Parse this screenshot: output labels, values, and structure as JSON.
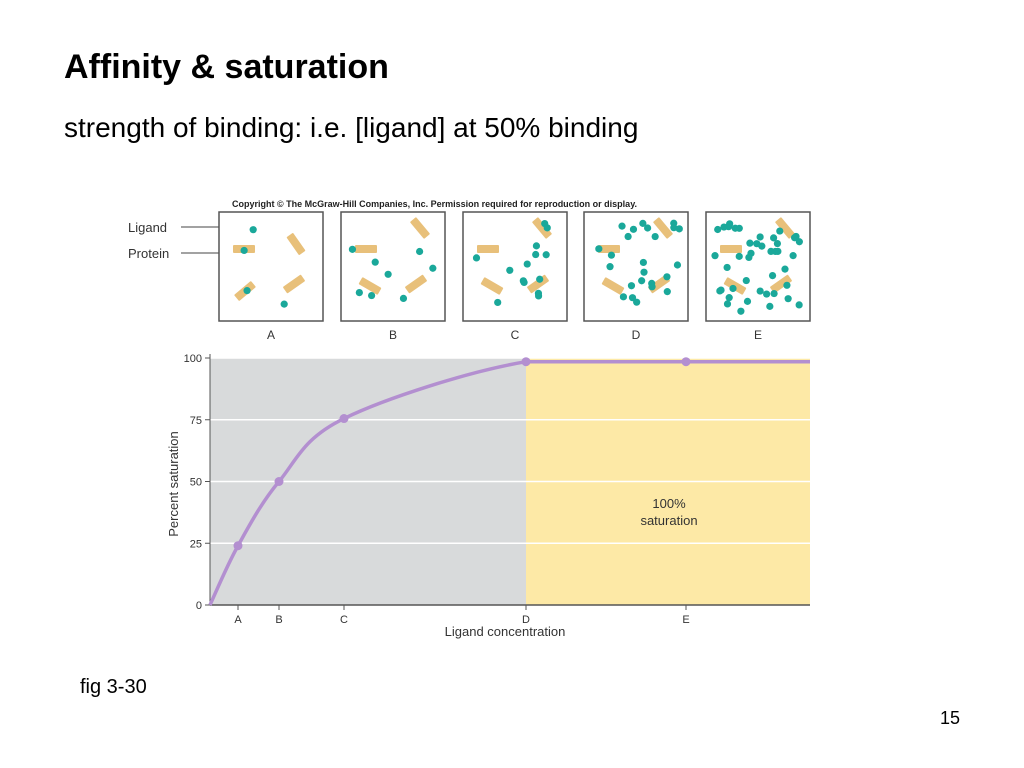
{
  "slide": {
    "title": "Affinity & saturation",
    "subtitle": "strength of binding: i.e. [ligand] at 50% binding",
    "caption": "fig 3-30",
    "page_number": "15"
  },
  "figure": {
    "copyright": "Copyright © The McGraw-Hill Companies, Inc. Permission required for reproduction or display.",
    "legend": {
      "ligand": "Ligand",
      "protein": "Protein"
    },
    "panels": [
      "A",
      "B",
      "C",
      "D",
      "E"
    ],
    "colors": {
      "ligand": "#1aa89a",
      "protein": "#e8c07a",
      "curve": "#b38fd0",
      "unsaturated_region": "#d8dadb",
      "saturated_region": "#fde9a6"
    }
  },
  "chart_data": {
    "type": "line",
    "xlabel": "Ligand concentration",
    "ylabel": "Percent saturation",
    "ylim": [
      0,
      100
    ],
    "yticks": [
      0,
      25,
      50,
      75,
      100
    ],
    "x_categories": [
      "A",
      "B",
      "C",
      "D",
      "E"
    ],
    "points": [
      {
        "x": "A",
        "y": 24
      },
      {
        "x": "B",
        "y": 50
      },
      {
        "x": "C",
        "y": 75.5
      },
      {
        "x": "D",
        "y": 98.5
      },
      {
        "x": "E",
        "y": 98.5
      }
    ],
    "annotation": [
      "100%",
      "saturation"
    ],
    "grid": true
  }
}
